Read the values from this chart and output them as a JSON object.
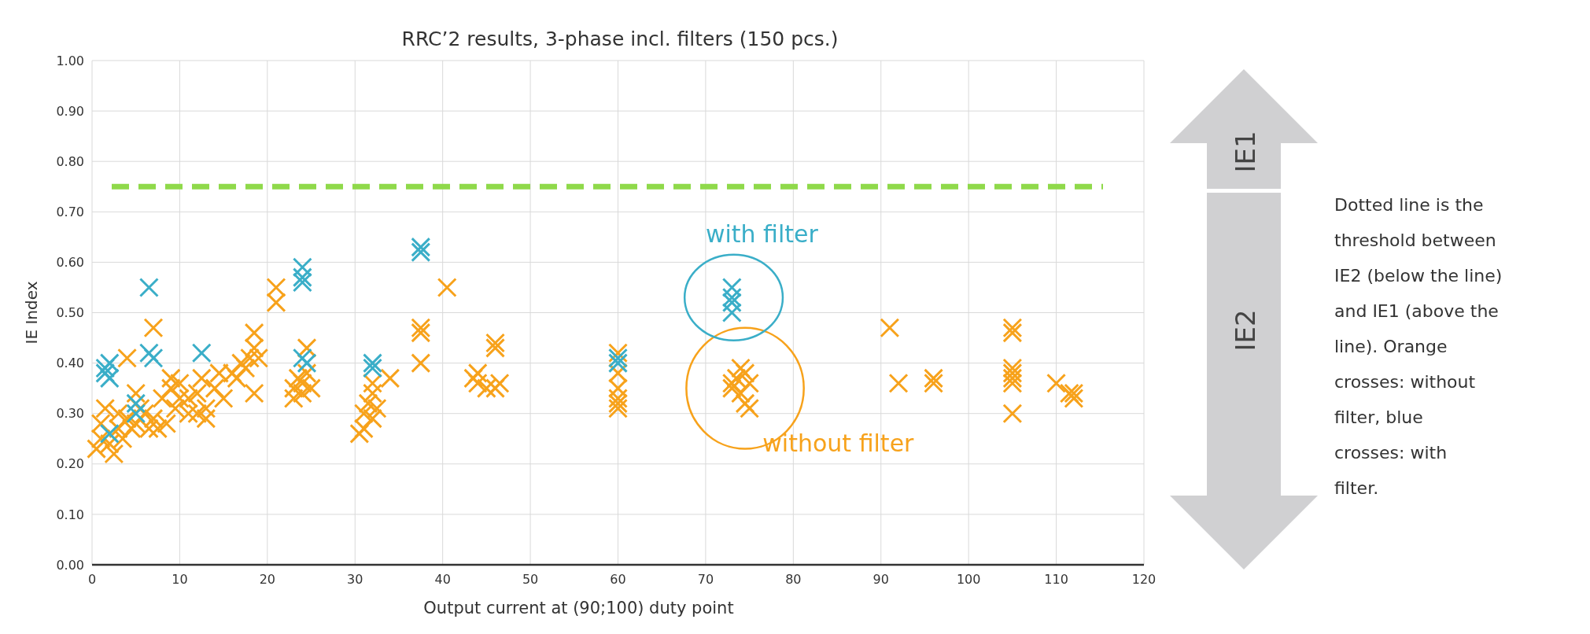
{
  "chart_data": {
    "type": "scatter",
    "title": "RRC’2 results, 3-phase incl. filters (150 pcs.)",
    "xlabel": "Output current at (90;100) duty point",
    "ylabel": "IE Index",
    "xlim": [
      0,
      120
    ],
    "xticks": [
      0,
      10,
      20,
      30,
      40,
      50,
      60,
      70,
      80,
      90,
      100,
      110,
      120
    ],
    "ylim": [
      0,
      1
    ],
    "yticks": [
      {
        "value": 0,
        "label": "0.00"
      },
      {
        "value": 0.1,
        "label": "0.10"
      },
      {
        "value": 0.2,
        "label": "0.20"
      },
      {
        "value": 0.3,
        "label": "0.30"
      },
      {
        "value": 0.4,
        "label": "0.40"
      },
      {
        "value": 0.5,
        "label": "0.50"
      },
      {
        "value": 0.6,
        "label": "0.60"
      },
      {
        "value": 0.7,
        "label": "0.70"
      },
      {
        "value": 0.8,
        "label": "0.80"
      },
      {
        "value": 0.9,
        "label": "0.90"
      },
      {
        "value": 1,
        "label": "1.00"
      }
    ],
    "grid": true,
    "marker": "cross",
    "ref_lines": [
      {
        "axis": "y",
        "value": 0.75,
        "color": "#8fd94a",
        "line_style": "dashed"
      }
    ],
    "annotations": [
      "Dotted line is the threshold between IE2 (below the line) and IE1 (above the line). Orange crosses: without filter, blue crosses: with filter.",
      "IE1",
      "IE2"
    ],
    "series": [
      {
        "name": "without filter",
        "color": "#f7a21b",
        "x": [
          0.5,
          1,
          1,
          1.5,
          2,
          2.5,
          3,
          3,
          3.5,
          4,
          4,
          4.5,
          5,
          5,
          5.5,
          6,
          6.5,
          7,
          7,
          7.5,
          8,
          8.5,
          9,
          9,
          9.5,
          10,
          10,
          11,
          11,
          12,
          12,
          12.5,
          13,
          13,
          14,
          14.5,
          15,
          16,
          16.5,
          17,
          17.5,
          18,
          18.5,
          18.5,
          18.5,
          19,
          21,
          21,
          23,
          23,
          23.5,
          24,
          24,
          24.5,
          24.5,
          25,
          30.5,
          31,
          31,
          31.5,
          32,
          32,
          32,
          32.5,
          34,
          37.5,
          37.5,
          37.5,
          40.5,
          43.5,
          44,
          44,
          45,
          46,
          46,
          46,
          46.5,
          60,
          60,
          60,
          60,
          60,
          60,
          73,
          73,
          73.5,
          74,
          74,
          74.5,
          74.5,
          75,
          75,
          91,
          92,
          96,
          96,
          105,
          105,
          105,
          105,
          105,
          105,
          105,
          110,
          111.5,
          112,
          112
        ],
        "values": [
          0.23,
          0.25,
          0.28,
          0.31,
          0.24,
          0.22,
          0.27,
          0.3,
          0.25,
          0.41,
          0.29,
          0.27,
          0.34,
          0.28,
          0.31,
          0.3,
          0.27,
          0.47,
          0.29,
          0.27,
          0.33,
          0.28,
          0.35,
          0.37,
          0.31,
          0.33,
          0.36,
          0.3,
          0.33,
          0.34,
          0.3,
          0.37,
          0.29,
          0.31,
          0.35,
          0.38,
          0.33,
          0.38,
          0.37,
          0.4,
          0.39,
          0.41,
          0.43,
          0.46,
          0.34,
          0.41,
          0.52,
          0.55,
          0.35,
          0.33,
          0.37,
          0.34,
          0.36,
          0.38,
          0.43,
          0.35,
          0.26,
          0.3,
          0.27,
          0.32,
          0.29,
          0.34,
          0.36,
          0.31,
          0.37,
          0.47,
          0.46,
          0.4,
          0.55,
          0.37,
          0.38,
          0.36,
          0.35,
          0.44,
          0.43,
          0.35,
          0.36,
          0.42,
          0.38,
          0.35,
          0.33,
          0.32,
          0.31,
          0.36,
          0.35,
          0.37,
          0.34,
          0.39,
          0.38,
          0.32,
          0.31,
          0.36,
          0.47,
          0.36,
          0.37,
          0.36,
          0.47,
          0.46,
          0.39,
          0.38,
          0.37,
          0.36,
          0.3,
          0.36,
          0.34,
          0.33,
          0.34
        ]
      },
      {
        "name": "with filter",
        "color": "#3aaec8",
        "x": [
          1.5,
          1.5,
          2,
          2,
          2,
          5,
          5,
          6.5,
          6.5,
          7,
          12.5,
          24,
          24,
          24,
          24,
          24.5,
          32,
          32,
          37.5,
          37.5,
          60,
          60,
          73,
          73,
          73,
          73
        ],
        "values": [
          0.38,
          0.39,
          0.37,
          0.4,
          0.26,
          0.32,
          0.3,
          0.55,
          0.42,
          0.41,
          0.42,
          0.57,
          0.59,
          0.56,
          0.41,
          0.4,
          0.4,
          0.39,
          0.63,
          0.62,
          0.4,
          0.41,
          0.55,
          0.53,
          0.52,
          0.5
        ]
      }
    ]
  }
}
